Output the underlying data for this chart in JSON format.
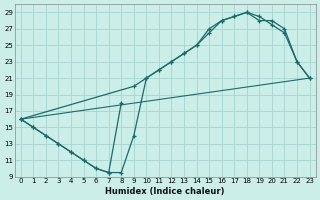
{
  "xlabel": "Humidex (Indice chaleur)",
  "bg_color": "#cceee8",
  "grid_color": "#aad8d2",
  "line_color": "#1a6b6b",
  "xlim": [
    -0.5,
    23.5
  ],
  "ylim": [
    9,
    30
  ],
  "xticks": [
    0,
    1,
    2,
    3,
    4,
    5,
    6,
    7,
    8,
    9,
    10,
    11,
    12,
    13,
    14,
    15,
    16,
    17,
    18,
    19,
    20,
    21,
    22,
    23
  ],
  "yticks": [
    9,
    11,
    13,
    15,
    17,
    19,
    21,
    23,
    25,
    27,
    29
  ],
  "line1_x": [
    0,
    1,
    2,
    3,
    4,
    5,
    6,
    7,
    8
  ],
  "line1_y": [
    16,
    15,
    14,
    13,
    12,
    11,
    10,
    9.5,
    18
  ],
  "line2_x": [
    0,
    1,
    2,
    3,
    4,
    5,
    6,
    7,
    8,
    9,
    10,
    11,
    12,
    13,
    14,
    15,
    16,
    17,
    18,
    19,
    20,
    21,
    22,
    23
  ],
  "line2_y": [
    16,
    15,
    14,
    13,
    12,
    11,
    10,
    9.5,
    9.5,
    14,
    21,
    22,
    23,
    24,
    25,
    27,
    28,
    28.5,
    29,
    28,
    28,
    27,
    23,
    21
  ],
  "line3_x": [
    0,
    9,
    10,
    11,
    12,
    13,
    14,
    15,
    16,
    17,
    18,
    19,
    20,
    21,
    22,
    23
  ],
  "line3_y": [
    16,
    20,
    21,
    22,
    23,
    24,
    25,
    26.5,
    28,
    28.5,
    29,
    28.5,
    27.5,
    26.5,
    23,
    21
  ],
  "line4_x": [
    0,
    23
  ],
  "line4_y": [
    16,
    21
  ]
}
